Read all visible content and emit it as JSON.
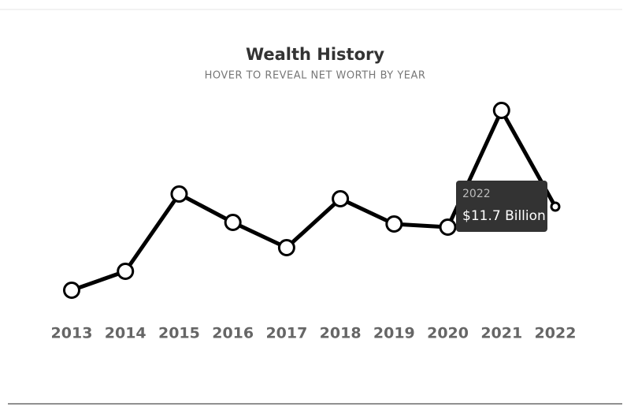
{
  "chart_data": {
    "type": "line",
    "title": "Wealth History",
    "subtitle": "HOVER TO REVEAL NET WORTH BY YEAR",
    "categories": [
      "2013",
      "2014",
      "2015",
      "2016",
      "2017",
      "2018",
      "2019",
      "2020",
      "2021",
      "2022"
    ],
    "values": [
      6.4,
      7.6,
      12.5,
      10.7,
      9.1,
      12.2,
      10.6,
      10.4,
      17.8,
      11.7
    ],
    "value_labels": [
      null,
      null,
      null,
      null,
      null,
      null,
      null,
      null,
      null,
      "$11.7 Billion"
    ],
    "color": "#000000"
  }
}
